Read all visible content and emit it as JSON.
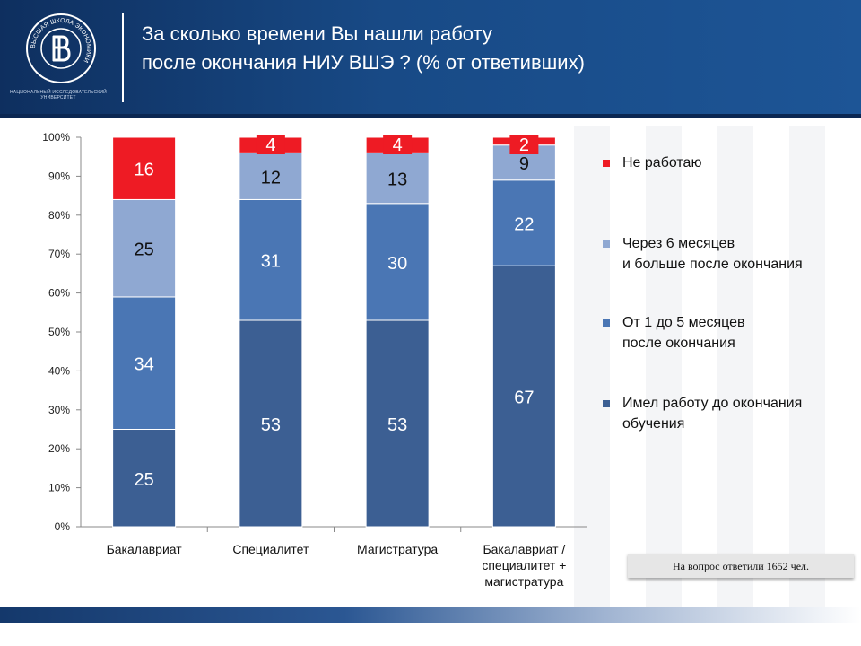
{
  "header": {
    "title_line1": "За сколько времени Вы нашли работу",
    "title_line2": "после окончания НИУ ВШЭ ? (% от ответивших)",
    "logo_caption_line1": "НАЦИОНАЛЬНЫЙ ИССЛЕДОВАТЕЛЬСКИЙ",
    "logo_caption_line2": "УНИВЕРСИТЕТ",
    "logo_ring_text": "ВЫСШАЯ ШКОЛА ЭКОНОМИКИ"
  },
  "note": "На вопрос ответили 1652 чел.",
  "colors": {
    "before_graduation": "#3c5f93",
    "one_to_five_months": "#4a76b4",
    "six_months_plus": "#8fa8d2",
    "not_working": "#ee1b24",
    "header": "#184a86"
  },
  "chart_data": {
    "type": "bar",
    "stacked": true,
    "ylim": [
      0,
      100
    ],
    "y_ticks": [
      "0%",
      "10%",
      "20%",
      "30%",
      "40%",
      "50%",
      "60%",
      "70%",
      "80%",
      "90%",
      "100%"
    ],
    "categories": [
      [
        "Бакалавриат"
      ],
      [
        "Специалитет"
      ],
      [
        "Магистратура"
      ],
      [
        "Бакалавриат /",
        "специалитет +",
        "магистратура"
      ]
    ],
    "series": [
      {
        "name": "Имел работу до окончания обучения",
        "name_lines": [
          "Имел работу до окончания",
          "обучения"
        ],
        "values": [
          25,
          53,
          53,
          67
        ]
      },
      {
        "name": "От 1 до 5 месяцев после окончания",
        "name_lines": [
          "От 1 до 5 месяцев",
          "после окончания"
        ],
        "values": [
          34,
          31,
          30,
          22
        ]
      },
      {
        "name": "Через 6 месяцев и больше после окончания",
        "name_lines": [
          "Через 6 месяцев",
          "и больше после окончания"
        ],
        "values": [
          25,
          12,
          13,
          9
        ]
      },
      {
        "name": "Не работаю",
        "name_lines": [
          "Не работаю"
        ],
        "values": [
          16,
          4,
          4,
          2
        ]
      }
    ],
    "legend": "right"
  }
}
